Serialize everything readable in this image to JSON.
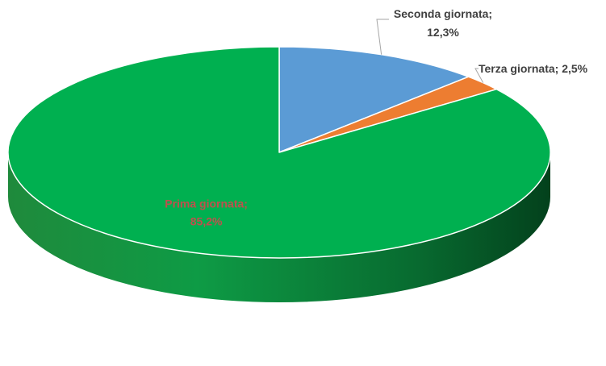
{
  "chart_data": {
    "type": "pie",
    "style": "3d",
    "categories": [
      "Prima giornata",
      "Seconda giornata",
      "Terza giornata"
    ],
    "values": [
      85.2,
      12.3,
      2.5
    ],
    "unit": "%",
    "colors": [
      "#00B050",
      "#5B9BD5",
      "#ED7D31"
    ],
    "labels": [
      {
        "name": "Prima giornata;",
        "value": "85,2%",
        "placement": "inside",
        "color": "#C0504D"
      },
      {
        "name": "Seconda giornata;",
        "value": "12,3%",
        "placement": "outside-leader",
        "color": "#404040"
      },
      {
        "name": "Terza giornata;",
        "value": "2,5%",
        "placement": "outside-leader",
        "color": "#404040"
      }
    ],
    "start_angle": "12 o'clock",
    "direction": "clockwise",
    "legend": "none"
  }
}
